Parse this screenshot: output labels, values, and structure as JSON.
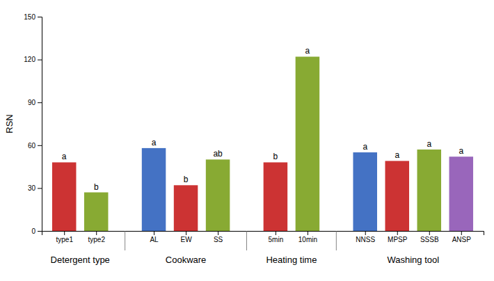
{
  "chart_data": {
    "type": "bar",
    "ylabel": "RSN",
    "ylim": [
      0,
      150
    ],
    "yticks": [
      0,
      30,
      60,
      90,
      120,
      150
    ],
    "grid": false,
    "groups": [
      {
        "label": "Detergent type",
        "categories": [
          "type1",
          "type2"
        ],
        "values": [
          48,
          27
        ],
        "colors": [
          "#cc3333",
          "#88aa33"
        ],
        "annotations": [
          "a",
          "b"
        ]
      },
      {
        "label": "Cookware",
        "categories": [
          "AL",
          "EW",
          "SS"
        ],
        "values": [
          58,
          32,
          50
        ],
        "colors": [
          "#4472c4",
          "#cc3333",
          "#88aa33"
        ],
        "annotations": [
          "a",
          "b",
          "ab"
        ]
      },
      {
        "label": "Heating time",
        "categories": [
          "5min",
          "10min"
        ],
        "values": [
          48,
          122
        ],
        "colors": [
          "#cc3333",
          "#88aa33"
        ],
        "annotations": [
          "b",
          "a"
        ]
      },
      {
        "label": "Washing tool",
        "categories": [
          "NNSS",
          "MPSP",
          "SSSB",
          "ANSP"
        ],
        "values": [
          55,
          49,
          57,
          52
        ],
        "colors": [
          "#4472c4",
          "#cc3333",
          "#88aa33",
          "#9966bb"
        ],
        "annotations": [
          "a",
          "a",
          "a",
          "a"
        ]
      }
    ]
  }
}
